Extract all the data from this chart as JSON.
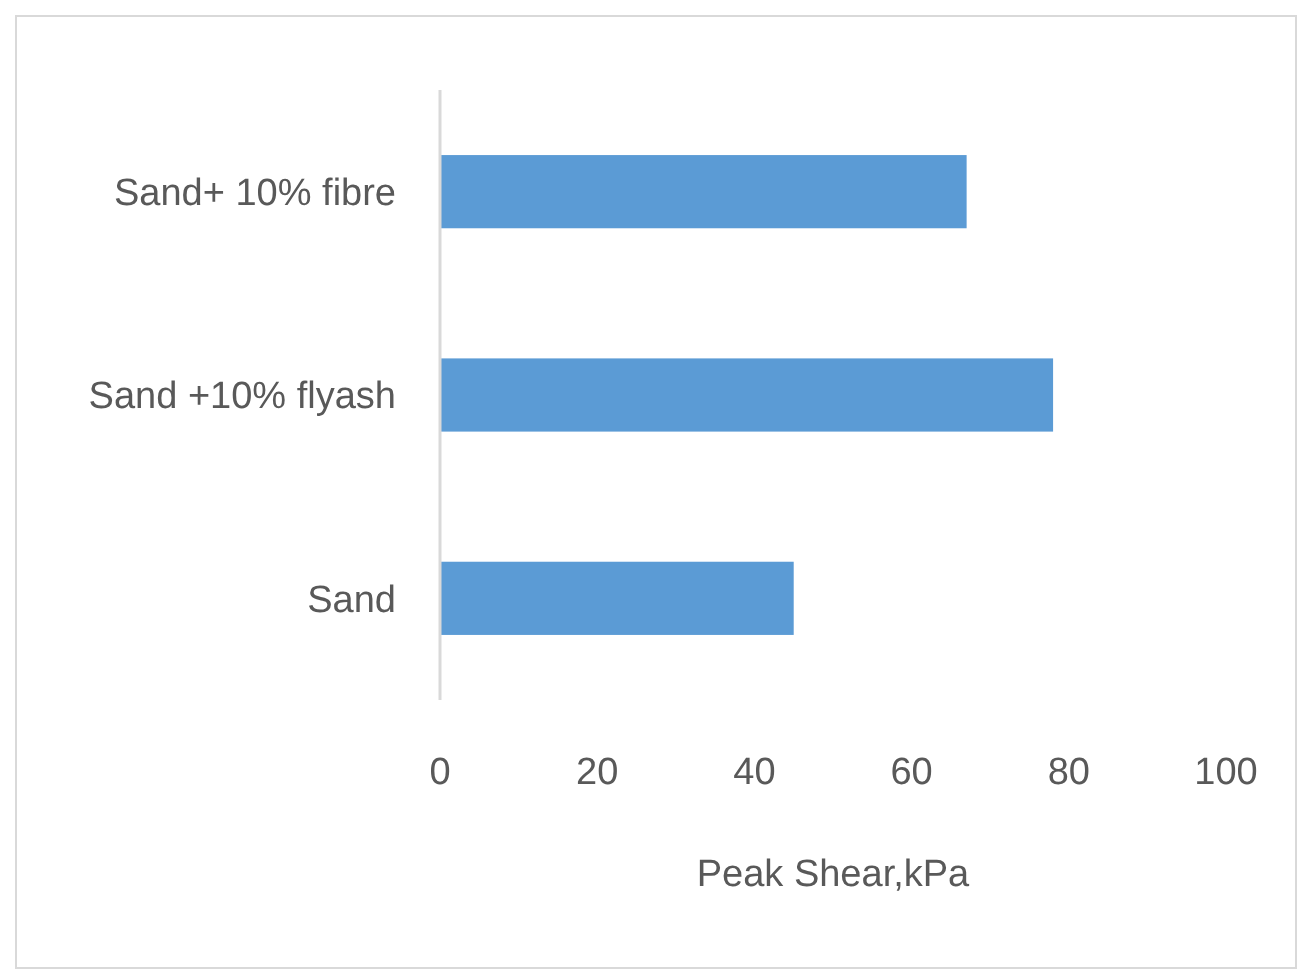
{
  "chart_data": {
    "type": "bar",
    "orientation": "horizontal",
    "xlabel": "Peak Shear,kPa",
    "categories": [
      "Sand+ 10% fibre",
      "Sand +10% flyash",
      "Sand"
    ],
    "values": [
      67,
      78,
      45
    ],
    "color": "#5b9bd5",
    "xlim": [
      0,
      100
    ],
    "xticks": [
      0,
      20,
      40,
      60,
      80,
      100
    ]
  }
}
